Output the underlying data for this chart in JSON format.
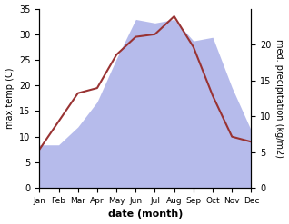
{
  "months": [
    1,
    2,
    3,
    4,
    5,
    6,
    7,
    8,
    9,
    10,
    11,
    12
  ],
  "month_labels": [
    "Jan",
    "Feb",
    "Mar",
    "Apr",
    "May",
    "Jun",
    "Jul",
    "Aug",
    "Sep",
    "Oct",
    "Nov",
    "Dec"
  ],
  "temperature": [
    7.5,
    13.0,
    18.5,
    19.5,
    26.0,
    29.5,
    30.0,
    33.5,
    27.5,
    18.0,
    10.0,
    9.0
  ],
  "precipitation_kg": [
    6.0,
    6.0,
    8.5,
    12.0,
    18.0,
    23.5,
    23.0,
    23.5,
    20.5,
    21.0,
    14.0,
    8.0
  ],
  "temp_color": "#993333",
  "precip_color": "#aab0e8",
  "left_ylabel": "max temp (C)",
  "right_ylabel": "med. precipitation (kg/m2)",
  "xlabel": "date (month)",
  "left_ylim": [
    0,
    35
  ],
  "right_ylim": [
    0,
    25
  ],
  "left_yticks": [
    0,
    5,
    10,
    15,
    20,
    25,
    30,
    35
  ],
  "right_yticks": [
    0,
    5,
    10,
    15,
    20
  ],
  "fig_width": 3.18,
  "fig_height": 2.47,
  "dpi": 100
}
